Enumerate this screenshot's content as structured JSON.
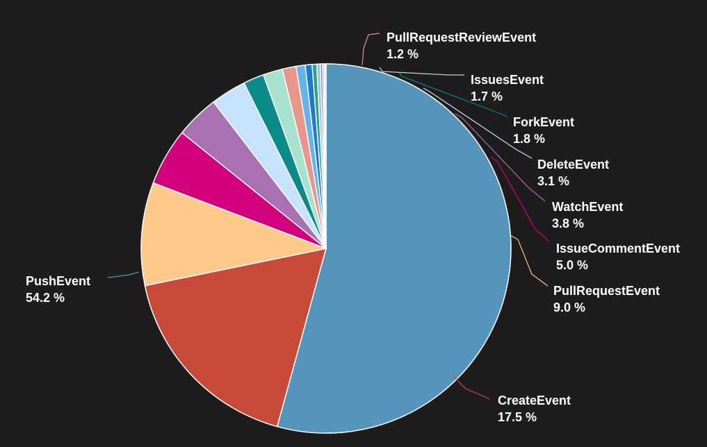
{
  "chart_data": {
    "type": "pie",
    "background": "#1e1c1c",
    "slices": [
      {
        "name": "PushEvent",
        "value": 54.2,
        "pct_label": "54.2 %",
        "color": "#5595bc",
        "labeled": true
      },
      {
        "name": "CreateEvent",
        "value": 17.5,
        "pct_label": "17.5 %",
        "color": "#c84b3a",
        "labeled": true
      },
      {
        "name": "PullRequestEvent",
        "value": 9.0,
        "pct_label": "9.0 %",
        "color": "#ffc98c",
        "labeled": true
      },
      {
        "name": "IssueCommentEvent",
        "value": 5.0,
        "pct_label": "5.0 %",
        "color": "#d3007d",
        "labeled": true
      },
      {
        "name": "WatchEvent",
        "value": 3.8,
        "pct_label": "3.8 %",
        "color": "#a971b2",
        "labeled": true
      },
      {
        "name": "DeleteEvent",
        "value": 3.1,
        "pct_label": "3.1 %",
        "color": "#c6e2fc",
        "labeled": true
      },
      {
        "name": "ForkEvent",
        "value": 1.8,
        "pct_label": "1.8 %",
        "color": "#0a8a88",
        "labeled": true
      },
      {
        "name": "IssuesEvent",
        "value": 1.7,
        "pct_label": "1.7 %",
        "color": "#a8e1ce",
        "labeled": true
      },
      {
        "name": "PullRequestReviewEvent",
        "value": 1.2,
        "pct_label": "1.2 %",
        "color": "#e8968a",
        "labeled": true
      },
      {
        "name": "",
        "value": 0.8,
        "pct_label": "",
        "color": "#66b3e8",
        "labeled": false
      },
      {
        "name": "",
        "value": 0.6,
        "pct_label": "",
        "color": "#1c7ccc",
        "labeled": false
      },
      {
        "name": "",
        "value": 0.4,
        "pct_label": "",
        "color": "#2f9e8c",
        "labeled": false
      },
      {
        "name": "",
        "value": 0.3,
        "pct_label": "",
        "color": "#8fc8dc",
        "labeled": false
      },
      {
        "name": "",
        "value": 0.2,
        "pct_label": "",
        "color": "#9a7cc4",
        "labeled": false
      },
      {
        "name": "",
        "value": 0.15,
        "pct_label": "",
        "color": "#c9a7e0",
        "labeled": false
      },
      {
        "name": "",
        "value": 0.15,
        "pct_label": "",
        "color": "#e6e0f5",
        "labeled": false
      }
    ],
    "start_angle": "12 o'clock",
    "direction": "clockwise"
  }
}
